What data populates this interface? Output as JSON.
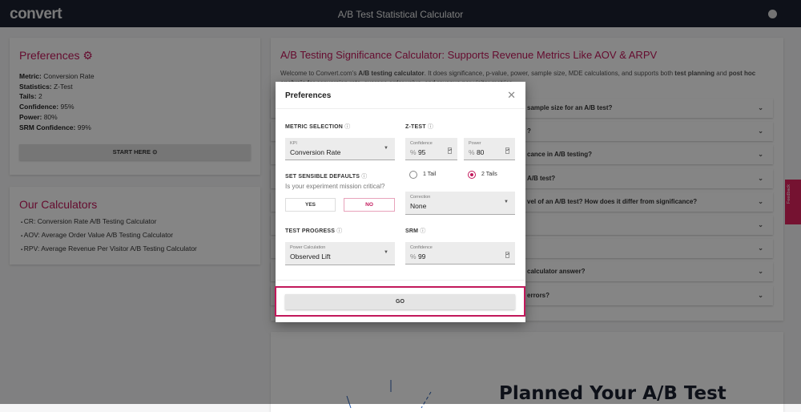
{
  "nav": {
    "logo": "convert",
    "title": "A/B Test Statistical Calculator",
    "theme_icon": "theme-toggle-icon"
  },
  "preferences_card": {
    "title": "Preferences",
    "items": [
      {
        "label": "Metric:",
        "value": " Conversion Rate"
      },
      {
        "label": "Statistics:",
        "value": " Z-Test"
      },
      {
        "label": "Tails:",
        "value": " 2"
      },
      {
        "label": "Confidence:",
        "value": " 95%"
      },
      {
        "label": "Power:",
        "value": " 80%"
      },
      {
        "label": "SRM Confidence:",
        "value": " 99%"
      }
    ],
    "start_label": "START HERE"
  },
  "calculators": {
    "title": "Our Calculators",
    "items": [
      "CR: Conversion Rate A/B Testing Calculator",
      "AOV: Average Order Value A/B Testing Calculator",
      "RPV: Average Revenue Per Visitor A/B Testing Calculator"
    ]
  },
  "main": {
    "title": "A/B Testing Significance Calculator: Supports Revenue Metrics Like AOV & ARPV",
    "welcome_1": "Welcome to Convert.com's ",
    "welcome_b1": "A/B testing calculator",
    "welcome_2": ". It does significance, p-value, power, sample size, MDE calculations, and supports both ",
    "welcome_b2": "test planning",
    "welcome_3": " and ",
    "welcome_b3": "post hoc analysis",
    "welcome_4": " for conversion rate, average order value, and revenue per visitor metrics.",
    "faq": [
      "sample size for an A/B test?",
      "?",
      "cance in A/B testing?",
      "A/B test?",
      "vel of an A/B test? How does it differ from significance?",
      "",
      "",
      "calculator answer?",
      "errors?"
    ],
    "planned_title": "Planned Your A/B Test"
  },
  "modal": {
    "title": "Preferences",
    "metric_section": "METRIC SELECTION",
    "kpi_label": "KPI",
    "kpi_value": "Conversion Rate",
    "ztest_section": "Z-TEST",
    "confidence_label": "Confidence",
    "confidence_value": "95",
    "power_label": "Power",
    "power_value": "80",
    "percent": "%",
    "defaults_section": "SET SENSIBLE DEFAULTS",
    "defaults_question": "Is your experiment mission critical?",
    "yes": "YES",
    "no": "NO",
    "no_selected": true,
    "tail1": "1 Tail",
    "tail2": "2 Tails",
    "tails_selected": 2,
    "correction_label": "Correction",
    "correction_value": "None",
    "progress_section": "TEST PROGRESS",
    "power_calc_label": "Power Calculation",
    "power_calc_value": "Observed Lift",
    "srm_section": "SRM",
    "srm_conf_label": "Confidence",
    "srm_conf_value": "99",
    "go": "GO"
  },
  "feedback": "Feedback",
  "colors": {
    "accent": "#c2185b",
    "nav": "#1b2230",
    "feedback": "#e0245e"
  }
}
